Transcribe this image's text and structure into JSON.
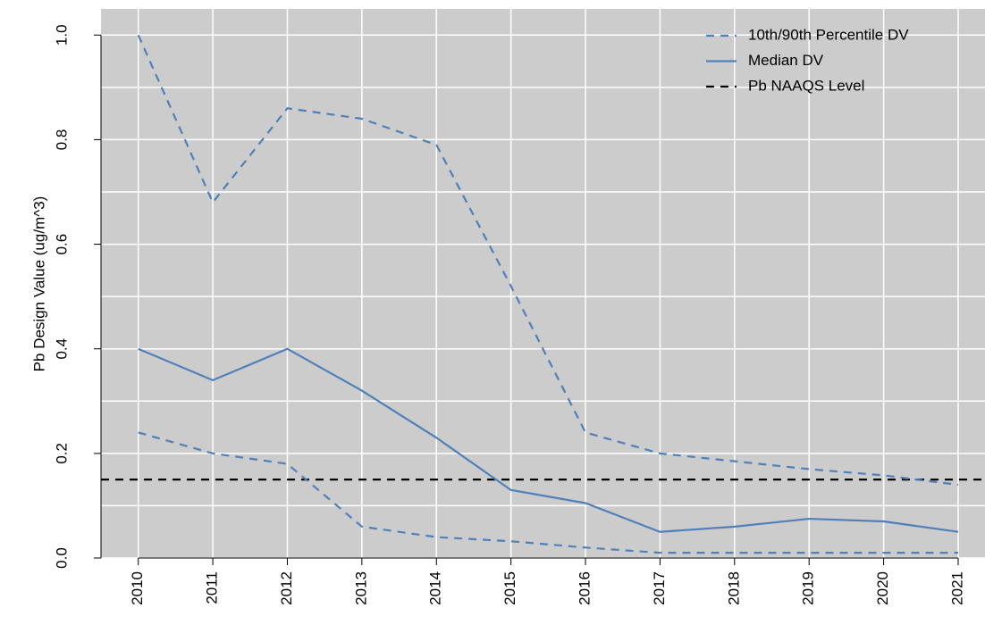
{
  "chart_data": {
    "type": "line",
    "y_label": "Pb Design Value (ug/m^3)",
    "x": [
      2010,
      2011,
      2012,
      2013,
      2014,
      2015,
      2016,
      2017,
      2018,
      2019,
      2020,
      2021
    ],
    "xlim": [
      2009.5,
      2021.36
    ],
    "xticks": [
      2010,
      2011,
      2012,
      2013,
      2014,
      2015,
      2016,
      2017,
      2018,
      2019,
      2020,
      2021
    ],
    "ylim": [
      0,
      1.05
    ],
    "yticks": [
      {
        "value": 0,
        "label": "0.0"
      },
      0.2,
      0.4,
      0.6,
      0.8,
      {
        "value": 1,
        "label": "1.0"
      }
    ],
    "ygrid": [
      0,
      0.1,
      0.2,
      0.3,
      0.4,
      0.5,
      0.6,
      0.7,
      0.8,
      0.9,
      1.0
    ],
    "grid": true,
    "background": "#cccccc",
    "legend_position": "top-right",
    "series": [
      {
        "name": "10th/90th Percentile DV",
        "color": "#4f81b8",
        "dash": true,
        "values": [
          1.0,
          0.68,
          0.86,
          0.84,
          0.79,
          0.52,
          0.24,
          0.2,
          0.185,
          0.17,
          0.158,
          0.14
        ],
        "low": [
          0.24,
          0.2,
          0.18,
          0.06,
          0.04,
          0.032,
          0.02,
          0.01,
          0.01,
          0.01,
          0.01,
          0.01
        ]
      },
      {
        "name": "Median DV",
        "color": "#4f81b8",
        "dash": false,
        "values": [
          0.4,
          0.34,
          0.4,
          0.32,
          0.23,
          0.13,
          0.105,
          0.05,
          0.06,
          0.075,
          0.07,
          0.05
        ]
      }
    ],
    "hlines": [
      {
        "name": "Pb NAAQS Level",
        "value": 0.15,
        "color": "#000000",
        "dash": true
      }
    ]
  }
}
